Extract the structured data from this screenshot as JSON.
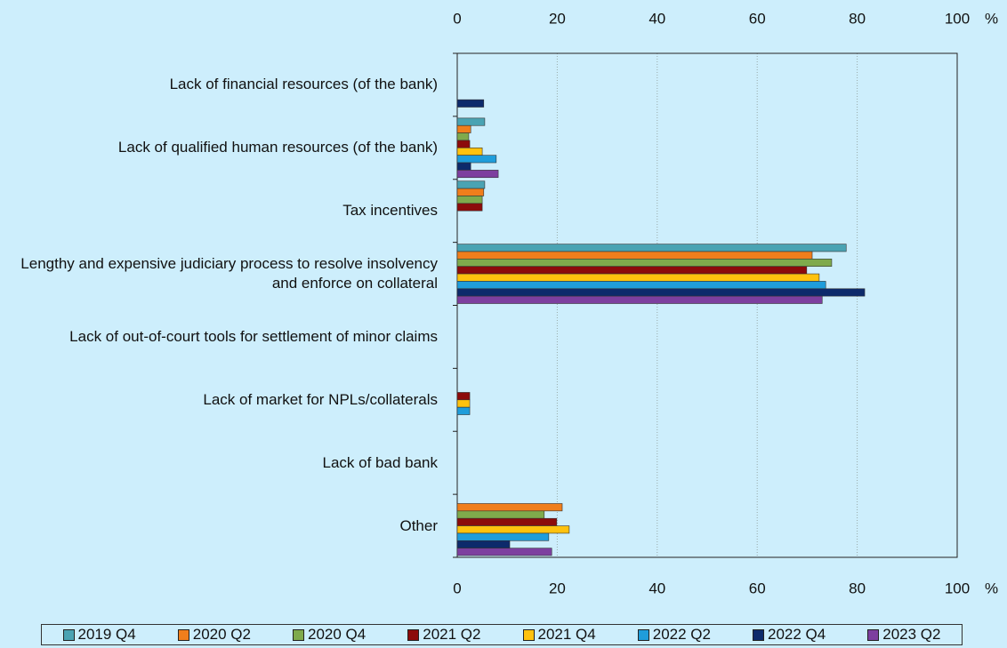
{
  "chart_data": {
    "type": "bar",
    "orientation": "horizontal",
    "categories": [
      "Lack of financial resources (of the bank)",
      "Lack of qualified human resources (of the bank)",
      "Tax incentives",
      "Lengthy and expensive judiciary process to resolve insolvency and enforce on collateral",
      "Lack of out-of-court tools for settlement of minor claims",
      "Lack of market for NPLs/collaterals",
      "Lack of bad bank",
      "Other"
    ],
    "series": [
      {
        "name": "2019 Q4",
        "color": "#4aa3b3",
        "values": [
          0,
          5.5,
          5.5,
          77.8,
          0,
          0,
          0,
          0
        ]
      },
      {
        "name": "2020 Q2",
        "color": "#f07e1c",
        "values": [
          0,
          2.7,
          5.3,
          71.0,
          0,
          0,
          0,
          21.0
        ]
      },
      {
        "name": "2020 Q4",
        "color": "#7faa4c",
        "values": [
          0,
          2.3,
          5.0,
          74.9,
          0,
          0,
          0,
          17.4
        ]
      },
      {
        "name": "2021 Q2",
        "color": "#8c0b0b",
        "values": [
          0,
          2.5,
          5.0,
          69.9,
          0,
          2.5,
          0,
          19.9
        ]
      },
      {
        "name": "2021 Q4",
        "color": "#ffc20e",
        "values": [
          0,
          5.0,
          0,
          72.4,
          0,
          2.5,
          0,
          22.4
        ]
      },
      {
        "name": "2022 Q2",
        "color": "#1f9ddb",
        "values": [
          0,
          7.8,
          0,
          73.7,
          0,
          2.5,
          0,
          18.3
        ]
      },
      {
        "name": "2022 Q4",
        "color": "#0d2a6b",
        "values": [
          5.3,
          2.7,
          0,
          81.5,
          0,
          0,
          0,
          10.5
        ]
      },
      {
        "name": "2023 Q2",
        "color": "#7d3f9f",
        "values": [
          0,
          8.2,
          0,
          73.0,
          0,
          0,
          0,
          18.9
        ]
      }
    ],
    "xlim": [
      0,
      100
    ],
    "xticks": [
      0,
      20,
      40,
      60,
      80,
      100
    ],
    "x_unit": "%",
    "grid": true,
    "legend": "bottom"
  }
}
